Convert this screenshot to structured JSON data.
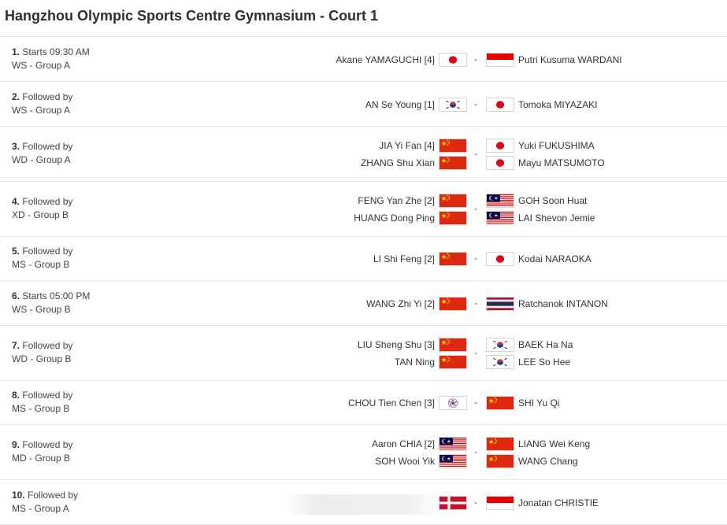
{
  "page": {
    "title": "Hangzhou Olympic Sports Centre Gymnasium - Court 1"
  },
  "matches": [
    {
      "num": "1.",
      "when": "Starts 09:30 AM",
      "event": "WS - Group A",
      "left": [
        {
          "name": "Akane YAMAGUCHI [4]",
          "flag": "JPN"
        }
      ],
      "right": [
        {
          "name": "Putri Kusuma WARDANI",
          "flag": "INA"
        }
      ]
    },
    {
      "num": "2.",
      "when": "Followed by",
      "event": "WS - Group A",
      "left": [
        {
          "name": "AN Se Young [1]",
          "flag": "KOR"
        }
      ],
      "right": [
        {
          "name": "Tomoka MIYAZAKI",
          "flag": "JPN"
        }
      ]
    },
    {
      "num": "3.",
      "when": "Followed by",
      "event": "WD - Group A",
      "left": [
        {
          "name": "JIA Yi Fan [4]",
          "flag": "CHN"
        },
        {
          "name": "ZHANG Shu Xian",
          "flag": "CHN"
        }
      ],
      "right": [
        {
          "name": "Yuki FUKUSHIMA",
          "flag": "JPN"
        },
        {
          "name": "Mayu MATSUMOTO",
          "flag": "JPN"
        }
      ]
    },
    {
      "num": "4.",
      "when": "Followed by",
      "event": "XD - Group B",
      "left": [
        {
          "name": "FENG Yan Zhe [2]",
          "flag": "CHN"
        },
        {
          "name": "HUANG Dong Ping",
          "flag": "CHN"
        }
      ],
      "right": [
        {
          "name": "GOH Soon Huat",
          "flag": "MAS"
        },
        {
          "name": "LAI Shevon Jemie",
          "flag": "MAS"
        }
      ]
    },
    {
      "num": "5.",
      "when": "Followed by",
      "event": "MS - Group B",
      "left": [
        {
          "name": "LI Shi Feng [2]",
          "flag": "CHN"
        }
      ],
      "right": [
        {
          "name": "Kodai NARAOKA",
          "flag": "JPN"
        }
      ]
    },
    {
      "num": "6.",
      "when": "Starts 05:00 PM",
      "event": "WS - Group B",
      "left": [
        {
          "name": "WANG Zhi Yi [2]",
          "flag": "CHN"
        }
      ],
      "right": [
        {
          "name": "Ratchanok INTANON",
          "flag": "THA"
        }
      ]
    },
    {
      "num": "7.",
      "when": "Followed by",
      "event": "WD - Group B",
      "left": [
        {
          "name": "LIU Sheng Shu [3]",
          "flag": "CHN"
        },
        {
          "name": "TAN Ning",
          "flag": "CHN"
        }
      ],
      "right": [
        {
          "name": "BAEK Ha Na",
          "flag": "KOR"
        },
        {
          "name": "LEE So Hee",
          "flag": "KOR"
        }
      ]
    },
    {
      "num": "8.",
      "when": "Followed by",
      "event": "MS - Group B",
      "left": [
        {
          "name": "CHOU Tien Chen [3]",
          "flag": "TPE"
        }
      ],
      "right": [
        {
          "name": "SHI Yu Qi",
          "flag": "CHN"
        }
      ]
    },
    {
      "num": "9.",
      "when": "Followed by",
      "event": "MD - Group B",
      "left": [
        {
          "name": "Aaron CHIA [2]",
          "flag": "MAS"
        },
        {
          "name": "SOH Wooi Yik",
          "flag": "MAS"
        }
      ],
      "right": [
        {
          "name": "LIANG Wei Keng",
          "flag": "CHN"
        },
        {
          "name": "WANG Chang",
          "flag": "CHN"
        }
      ]
    },
    {
      "num": "10.",
      "when": "Followed by",
      "event": "MS - Group A",
      "left": [
        {
          "name": "",
          "flag": "DEN"
        }
      ],
      "right": [
        {
          "name": "Jonatan CHRISTIE",
          "flag": "INA"
        }
      ]
    }
  ],
  "separator": "-"
}
